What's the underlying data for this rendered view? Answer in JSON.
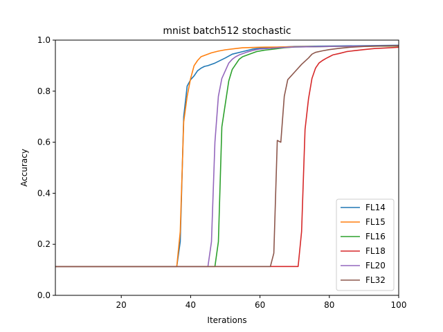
{
  "chart_data": {
    "type": "line",
    "title": "mnist batch512 stochastic",
    "xlabel": "Iterations",
    "ylabel": "Accuracy",
    "xlim": [
      1,
      100
    ],
    "ylim": [
      0,
      1
    ],
    "xticks": [
      20,
      40,
      60,
      80,
      100
    ],
    "xtick_labels": [
      "20",
      "40",
      "60",
      "80",
      "100"
    ],
    "yticks": [
      0,
      0.2,
      0.4,
      0.6,
      0.8,
      1.0
    ],
    "ytick_labels": [
      "0.0",
      "0.2",
      "0.4",
      "0.6",
      "0.8",
      "1.0"
    ],
    "grid": false,
    "legend_position": "bottom-right",
    "series": [
      {
        "name": "FL14",
        "color": "#1f77b4",
        "points": [
          [
            1,
            0.113
          ],
          [
            36,
            0.113
          ],
          [
            37,
            0.21
          ],
          [
            38,
            0.7
          ],
          [
            39,
            0.82
          ],
          [
            40,
            0.845
          ],
          [
            41,
            0.86
          ],
          [
            42,
            0.88
          ],
          [
            43,
            0.89
          ],
          [
            44,
            0.897
          ],
          [
            45,
            0.9
          ],
          [
            47,
            0.91
          ],
          [
            50,
            0.93
          ],
          [
            52,
            0.945
          ],
          [
            55,
            0.955
          ],
          [
            58,
            0.965
          ],
          [
            60,
            0.968
          ],
          [
            65,
            0.972
          ],
          [
            70,
            0.975
          ],
          [
            80,
            0.977
          ],
          [
            90,
            0.978
          ],
          [
            100,
            0.98
          ]
        ]
      },
      {
        "name": "FL15",
        "color": "#ff7f0e",
        "points": [
          [
            1,
            0.113
          ],
          [
            36,
            0.113
          ],
          [
            37,
            0.25
          ],
          [
            38,
            0.68
          ],
          [
            39,
            0.78
          ],
          [
            40,
            0.85
          ],
          [
            41,
            0.9
          ],
          [
            42,
            0.92
          ],
          [
            43,
            0.935
          ],
          [
            44,
            0.94
          ],
          [
            46,
            0.95
          ],
          [
            48,
            0.957
          ],
          [
            50,
            0.962
          ],
          [
            53,
            0.967
          ],
          [
            55,
            0.97
          ],
          [
            60,
            0.972
          ],
          [
            65,
            0.973
          ],
          [
            70,
            0.974
          ],
          [
            80,
            0.975
          ],
          [
            90,
            0.976
          ],
          [
            100,
            0.977
          ]
        ]
      },
      {
        "name": "FL16",
        "color": "#2ca02c",
        "points": [
          [
            1,
            0.113
          ],
          [
            47,
            0.113
          ],
          [
            48,
            0.21
          ],
          [
            49,
            0.66
          ],
          [
            50,
            0.75
          ],
          [
            51,
            0.84
          ],
          [
            52,
            0.885
          ],
          [
            53,
            0.905
          ],
          [
            54,
            0.925
          ],
          [
            55,
            0.935
          ],
          [
            57,
            0.945
          ],
          [
            59,
            0.955
          ],
          [
            61,
            0.96
          ],
          [
            64,
            0.965
          ],
          [
            67,
            0.97
          ],
          [
            70,
            0.973
          ],
          [
            80,
            0.975
          ],
          [
            90,
            0.976
          ],
          [
            100,
            0.977
          ]
        ]
      },
      {
        "name": "FL18",
        "color": "#d62728",
        "points": [
          [
            1,
            0.113
          ],
          [
            71,
            0.113
          ],
          [
            72,
            0.25
          ],
          [
            73,
            0.65
          ],
          [
            74,
            0.77
          ],
          [
            75,
            0.85
          ],
          [
            76,
            0.89
          ],
          [
            77,
            0.91
          ],
          [
            78,
            0.92
          ],
          [
            79,
            0.928
          ],
          [
            80,
            0.935
          ],
          [
            81,
            0.942
          ],
          [
            83,
            0.948
          ],
          [
            85,
            0.955
          ],
          [
            88,
            0.96
          ],
          [
            90,
            0.963
          ],
          [
            93,
            0.967
          ],
          [
            96,
            0.969
          ],
          [
            100,
            0.972
          ]
        ]
      },
      {
        "name": "FL20",
        "color": "#9467bd",
        "points": [
          [
            1,
            0.113
          ],
          [
            45,
            0.113
          ],
          [
            46,
            0.21
          ],
          [
            47,
            0.6
          ],
          [
            48,
            0.78
          ],
          [
            49,
            0.85
          ],
          [
            50,
            0.88
          ],
          [
            51,
            0.91
          ],
          [
            52,
            0.925
          ],
          [
            53,
            0.935
          ],
          [
            54,
            0.942
          ],
          [
            56,
            0.952
          ],
          [
            58,
            0.96
          ],
          [
            60,
            0.965
          ],
          [
            65,
            0.97
          ],
          [
            70,
            0.973
          ],
          [
            80,
            0.975
          ],
          [
            90,
            0.977
          ],
          [
            100,
            0.978
          ]
        ]
      },
      {
        "name": "FL32",
        "color": "#8c564b",
        "points": [
          [
            1,
            0.113
          ],
          [
            63,
            0.113
          ],
          [
            64,
            0.165
          ],
          [
            65,
            0.607
          ],
          [
            66,
            0.6
          ],
          [
            67,
            0.78
          ],
          [
            68,
            0.845
          ],
          [
            70,
            0.875
          ],
          [
            72,
            0.905
          ],
          [
            74,
            0.93
          ],
          [
            75,
            0.945
          ],
          [
            76,
            0.952
          ],
          [
            78,
            0.958
          ],
          [
            80,
            0.963
          ],
          [
            83,
            0.968
          ],
          [
            86,
            0.972
          ],
          [
            90,
            0.975
          ],
          [
            95,
            0.977
          ],
          [
            100,
            0.978
          ]
        ]
      }
    ]
  }
}
